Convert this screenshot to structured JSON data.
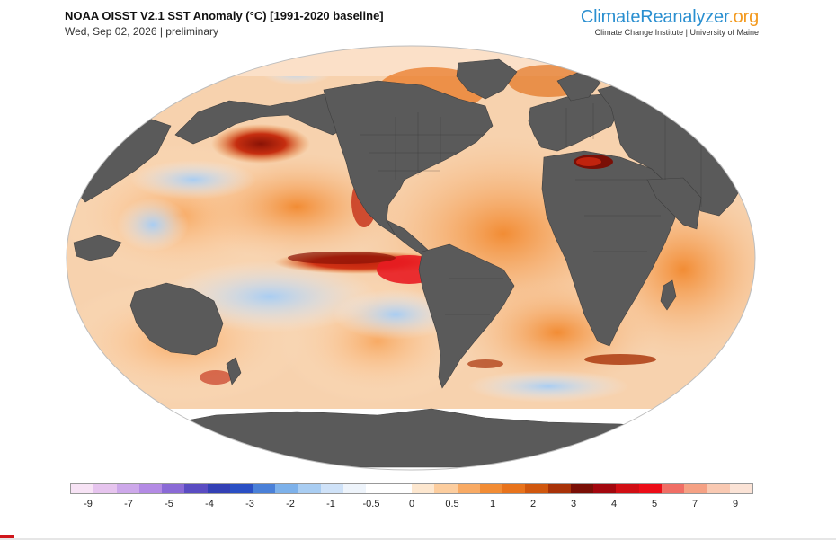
{
  "header": {
    "title": "NOAA OISST V2.1 SST Anomaly (°C) [1991-2020 baseline]",
    "subtitle": "Wed, Sep 02, 2026 | preliminary"
  },
  "brand": {
    "name_part1": "Climate",
    "name_part2": "Reanalyzer",
    "name_part3": ".org",
    "tagline": "Climate Change Institute | University of Maine"
  },
  "colorbar": {
    "ticks": [
      "-9",
      "-7",
      "-5",
      "-4",
      "-3",
      "-2",
      "-1",
      "-0.5",
      "0",
      "0.5",
      "1",
      "2",
      "3",
      "4",
      "5",
      "7",
      "9"
    ],
    "colors": [
      "#f7e3f5",
      "#e6c4ee",
      "#cda8ea",
      "#b38ae4",
      "#8a6ad6",
      "#5a4cc2",
      "#3340b5",
      "#2a4fc4",
      "#4a80d8",
      "#7db1ea",
      "#a9cdf2",
      "#cfe2f8",
      "#eef4fb",
      "#ffffff",
      "#ffffff",
      "#fde7cf",
      "#fccd9e",
      "#f8aa64",
      "#f28c34",
      "#e8731c",
      "#d0570e",
      "#a83208",
      "#7a0f06",
      "#a3070e",
      "#d10e14",
      "#ec0d17",
      "#f06e65",
      "#f5a184",
      "#f9c9b2",
      "#fbe3d6"
    ],
    "map_colors": {
      "ocean_neutral": "#ffffff",
      "land": "#5a5a5a",
      "warm_light": "#f9c494",
      "warm_mid": "#f3a05a",
      "warm_strong": "#e27420",
      "hot": "#c0230e",
      "hotter": "#e81c22",
      "cool_light": "#c6dcf4",
      "cool_mid": "#8fb8e8"
    }
  }
}
